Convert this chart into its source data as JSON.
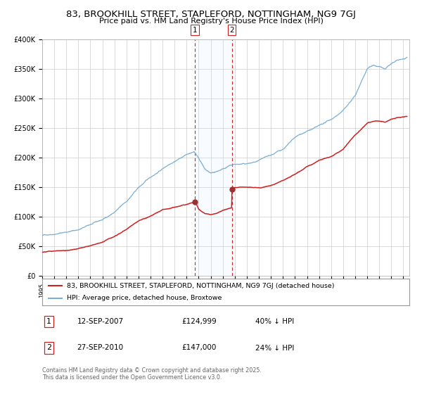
{
  "title": "83, BROOKHILL STREET, STAPLEFORD, NOTTINGHAM, NG9 7GJ",
  "subtitle": "Price paid vs. HM Land Registry's House Price Index (HPI)",
  "hpi_color": "#7bafd4",
  "price_color": "#cc2222",
  "marker_color": "#993333",
  "shade_color": "#ddeeff",
  "vline_color": "#cc2222",
  "transaction1": {
    "date": "12-SEP-2007",
    "price": 124999,
    "hpi_pct": "40% ↓ HPI",
    "x": 2007.7
  },
  "transaction2": {
    "date": "27-SEP-2010",
    "price": 147000,
    "hpi_pct": "24% ↓ HPI",
    "x": 2010.75
  },
  "legend_entry1": "83, BROOKHILL STREET, STAPLEFORD, NOTTINGHAM, NG9 7GJ (detached house)",
  "legend_entry2": "HPI: Average price, detached house, Broxtowe",
  "footnote": "Contains HM Land Registry data © Crown copyright and database right 2025.\nThis data is licensed under the Open Government Licence v3.0.",
  "background_color": "#ffffff",
  "grid_color": "#cccccc",
  "hpi_anchors_x": [
    1995,
    1996,
    1997,
    1998,
    1999,
    2000,
    2001,
    2002,
    2003,
    2004,
    2005,
    2006,
    2007,
    2007.6,
    2008,
    2008.5,
    2009,
    2009.5,
    2010,
    2010.5,
    2011,
    2012,
    2013,
    2014,
    2015,
    2016,
    2017,
    2018,
    2019,
    2020,
    2021,
    2022,
    2022.5,
    2023,
    2023.5,
    2024,
    2024.5,
    2025.3
  ],
  "hpi_anchors_y": [
    68000,
    72000,
    76000,
    80000,
    88000,
    95000,
    108000,
    125000,
    148000,
    165000,
    180000,
    195000,
    207000,
    210000,
    200000,
    182000,
    175000,
    178000,
    183000,
    188000,
    190000,
    190000,
    193000,
    200000,
    210000,
    228000,
    238000,
    245000,
    255000,
    270000,
    295000,
    340000,
    348000,
    345000,
    340000,
    348000,
    352000,
    355000
  ],
  "price_anchors_x": [
    1995,
    1996,
    1997,
    1998,
    1999,
    2000,
    2001,
    2002,
    2003,
    2004,
    2005,
    2006,
    2007,
    2007.69,
    2007.71,
    2008,
    2008.5,
    2009,
    2009.5,
    2010,
    2010.74,
    2010.76,
    2011,
    2012,
    2013,
    2014,
    2015,
    2016,
    2017,
    2018,
    2019,
    2020,
    2021,
    2022,
    2022.5,
    2023,
    2023.5,
    2024,
    2024.5,
    2025.3
  ],
  "price_anchors_y": [
    40000,
    42000,
    44000,
    46000,
    50000,
    55000,
    65000,
    78000,
    92000,
    100000,
    110000,
    115000,
    120000,
    124999,
    124999,
    112000,
    105000,
    103000,
    105000,
    110000,
    115000,
    147000,
    149000,
    148000,
    148000,
    152000,
    160000,
    170000,
    183000,
    193000,
    200000,
    210000,
    235000,
    255000,
    258000,
    260000,
    258000,
    262000,
    265000,
    267000
  ],
  "ylim": [
    0,
    400000
  ],
  "xlim": [
    1995,
    2025.5
  ],
  "ytick_vals": [
    0,
    50000,
    100000,
    150000,
    200000,
    250000,
    300000,
    350000,
    400000
  ],
  "ytick_labels": [
    "£0",
    "£50K",
    "£100K",
    "£150K",
    "£200K",
    "£250K",
    "£300K",
    "£350K",
    "£400K"
  ]
}
